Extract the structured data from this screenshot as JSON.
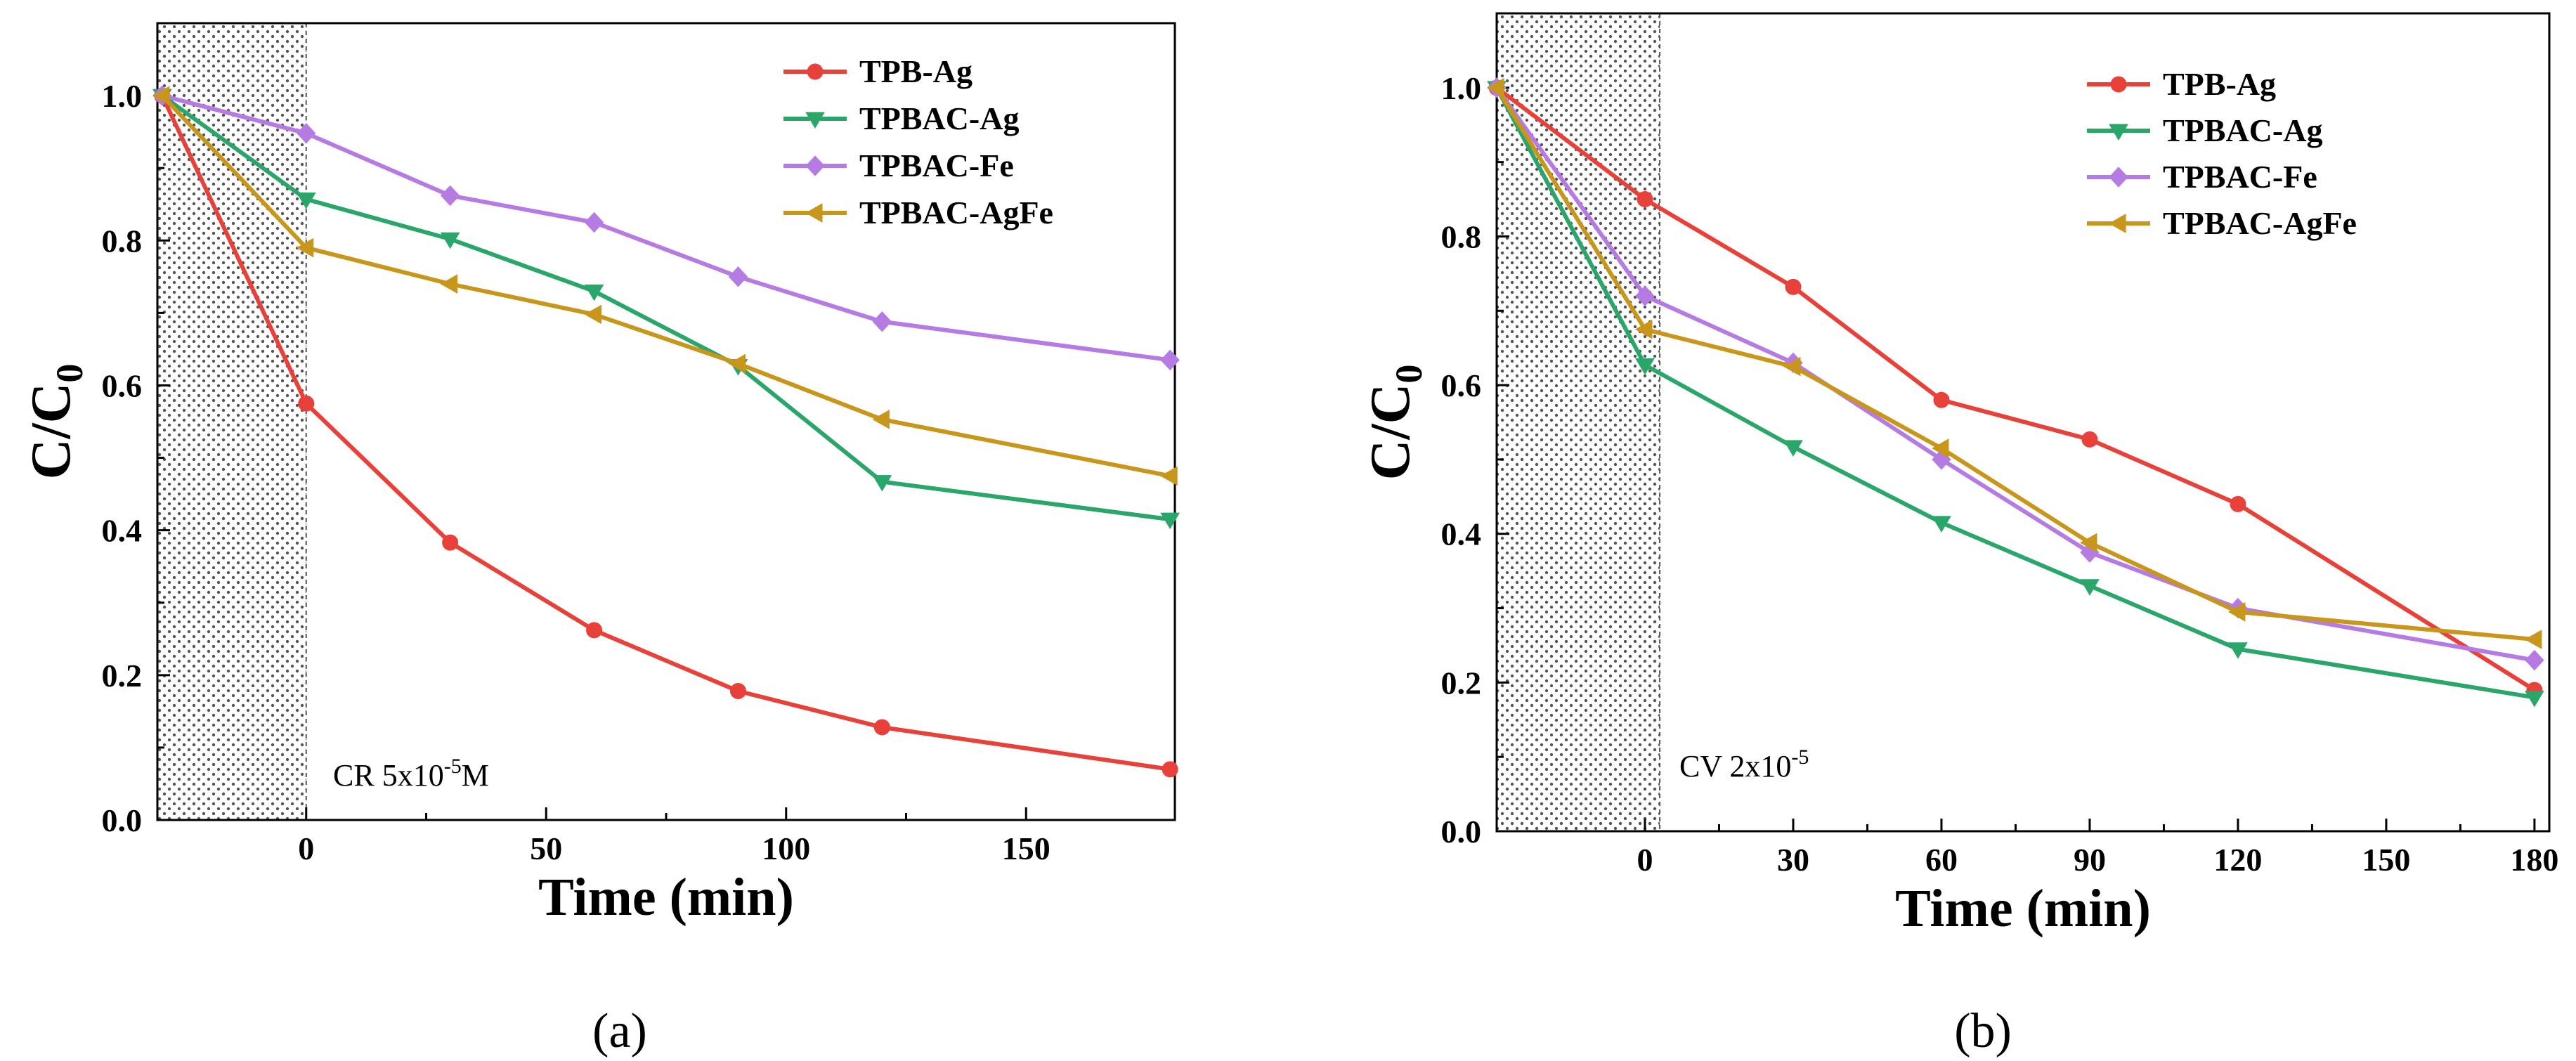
{
  "chart_data": [
    {
      "type": "line",
      "panel_label": "(a)",
      "xlabel": "Time (min)",
      "ylabel_main": "C/C",
      "ylabel_sub": "0",
      "annotation": {
        "main": "CR 5x10",
        "sup": "-5",
        "tail": "M"
      },
      "xlim": [
        -31,
        181
      ],
      "ylim": [
        0,
        1.1
      ],
      "xticks": [
        0,
        50,
        100,
        150
      ],
      "xtick_labels": [
        "0",
        "50",
        "100",
        "150"
      ],
      "yticks": [
        0,
        0.2,
        0.4,
        0.6,
        0.8,
        1.0
      ],
      "ytick_labels": [
        "0.0",
        "0.2",
        "0.4",
        "0.6",
        "0.8",
        "1.0"
      ],
      "dark_region": [
        -31,
        0
      ],
      "legend_position": "top-right",
      "x": [
        -30,
        0,
        30,
        60,
        90,
        120,
        180
      ],
      "series": [
        {
          "name": "TPB-Ag",
          "color": "#e8413a",
          "marker": "circle",
          "values": [
            1.0,
            0.575,
            0.383,
            0.262,
            0.178,
            0.128,
            0.07
          ]
        },
        {
          "name": "TPBAC-Ag",
          "color": "#2aa66a",
          "marker": "triangle-down",
          "values": [
            1.0,
            0.857,
            0.802,
            0.73,
            0.627,
            0.467,
            0.415
          ]
        },
        {
          "name": "TPBAC-Fe",
          "color": "#b57be3",
          "marker": "diamond",
          "values": [
            1.0,
            0.948,
            0.862,
            0.825,
            0.75,
            0.688,
            0.635
          ]
        },
        {
          "name": "TPBAC-AgFe",
          "color": "#c8961a",
          "marker": "triangle-left",
          "values": [
            1.0,
            0.79,
            0.74,
            0.698,
            0.63,
            0.553,
            0.475
          ]
        }
      ]
    },
    {
      "type": "line",
      "panel_label": "(b)",
      "xlabel": "Time (min)",
      "ylabel_main": "C/C",
      "ylabel_sub": "0",
      "annotation": {
        "main": "CV 2x10",
        "sup": "-5",
        "tail": ""
      },
      "xlim": [
        -30,
        183
      ],
      "ylim": [
        0,
        1.1
      ],
      "xticks": [
        0,
        30,
        60,
        90,
        120,
        150,
        180
      ],
      "xtick_labels": [
        "0",
        "30",
        "60",
        "90",
        "120",
        "150",
        "180"
      ],
      "yticks": [
        0,
        0.2,
        0.4,
        0.6,
        0.8,
        1.0
      ],
      "ytick_labels": [
        "0.0",
        "0.2",
        "0.4",
        "0.6",
        "0.8",
        "1.0"
      ],
      "dark_region": [
        -30,
        3
      ],
      "legend_position": "top-right",
      "x": [
        -30,
        0,
        30,
        60,
        90,
        120,
        180
      ],
      "series": [
        {
          "name": "TPB-Ag",
          "color": "#e8413a",
          "marker": "circle",
          "values": [
            1.0,
            0.85,
            0.732,
            0.58,
            0.527,
            0.44,
            0.19
          ]
        },
        {
          "name": "TPBAC-Ag",
          "color": "#2aa66a",
          "marker": "triangle-down",
          "values": [
            1.0,
            0.627,
            0.517,
            0.415,
            0.33,
            0.245,
            0.18
          ]
        },
        {
          "name": "TPBAC-Fe",
          "color": "#b57be3",
          "marker": "diamond",
          "values": [
            1.0,
            0.72,
            0.63,
            0.5,
            0.375,
            0.3,
            0.23
          ]
        },
        {
          "name": "TPBAC-AgFe",
          "color": "#c8961a",
          "marker": "triangle-left",
          "values": [
            1.0,
            0.675,
            0.625,
            0.515,
            0.388,
            0.295,
            0.258
          ]
        }
      ]
    }
  ]
}
